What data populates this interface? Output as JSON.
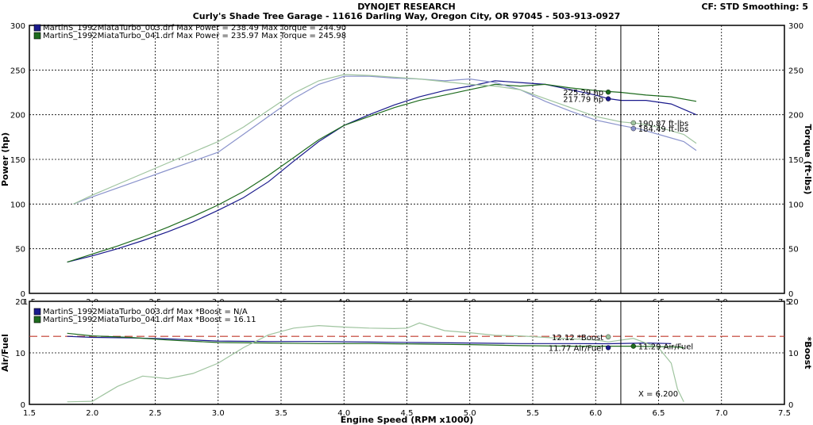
{
  "header": {
    "title": "DYNOJET RESEARCH",
    "subtitle": "Curly's Shade Tree Garage - 11616 Darling Way, Oregon City, OR 97045 - 503-913-0927",
    "correction": "CF: STD  Smoothing: 5"
  },
  "colors": {
    "run_003": "#1a1a8c",
    "run_041": "#1e6b1e",
    "torque_003": "#8a93cc",
    "torque_041": "#9fc49f",
    "afr_ref_line": "#c0392b",
    "grid": "#000000"
  },
  "chart_data": [
    {
      "type": "line",
      "title": "",
      "xlabel": "Engine Speed (RPM x1000)",
      "ylabel": "Power (hp)",
      "y2label": "Torque (ft-lbs)",
      "xlim": [
        1.5,
        7.5
      ],
      "ylim": [
        0,
        300
      ],
      "xticks": [
        "1.5",
        "2.0",
        "2.5",
        "3.0",
        "3.5",
        "4.0",
        "4.5",
        "5.0",
        "5.5",
        "6.0",
        "6.5",
        "7.0",
        "7.5"
      ],
      "yticks": [
        "0",
        "50",
        "100",
        "150",
        "200",
        "250",
        "300"
      ],
      "grid": true,
      "legend": [
        "MartinS_1992MiataTurbo_003.drf Max Power = 238.49     Max Torque = 244.90",
        "MartinS_1992MiataTurbo_041.drf Max Power = 235.97     Max Torque = 245.98"
      ],
      "cursor_x": 6.2,
      "series": [
        {
          "key": "run_003_power",
          "color_key": "run_003",
          "x": [
            1.8,
            2.0,
            2.2,
            2.4,
            2.6,
            2.8,
            3.0,
            3.2,
            3.4,
            3.6,
            3.8,
            4.0,
            4.2,
            4.4,
            4.6,
            4.8,
            5.0,
            5.2,
            5.4,
            5.6,
            5.8,
            6.0,
            6.1,
            6.2,
            6.4,
            6.6,
            6.8
          ],
          "y": [
            35,
            42,
            50,
            59,
            69,
            80,
            93,
            107,
            125,
            148,
            170,
            188,
            200,
            211,
            220,
            227,
            232,
            238,
            236,
            234,
            228,
            222,
            218,
            216,
            216,
            212,
            200
          ]
        },
        {
          "key": "run_041_power",
          "color_key": "run_041",
          "x": [
            1.8,
            2.0,
            2.2,
            2.4,
            2.6,
            2.8,
            3.0,
            3.2,
            3.4,
            3.6,
            3.8,
            4.0,
            4.2,
            4.4,
            4.6,
            4.8,
            5.0,
            5.2,
            5.4,
            5.6,
            5.8,
            6.0,
            6.1,
            6.2,
            6.4,
            6.6,
            6.8
          ],
          "y": [
            35,
            44,
            53,
            63,
            74,
            86,
            99,
            114,
            132,
            152,
            172,
            188,
            198,
            208,
            216,
            222,
            228,
            234,
            232,
            234,
            230,
            227,
            226,
            225,
            222,
            220,
            215
          ]
        },
        {
          "key": "run_003_torque",
          "color_key": "torque_003",
          "x": [
            1.85,
            2.0,
            2.2,
            2.4,
            2.6,
            2.8,
            3.0,
            3.2,
            3.4,
            3.6,
            3.8,
            4.0,
            4.2,
            4.4,
            4.6,
            4.8,
            5.0,
            5.2,
            5.4,
            5.6,
            5.8,
            6.0,
            6.2,
            6.35,
            6.5,
            6.7,
            6.8
          ],
          "y": [
            100,
            108,
            118,
            128,
            138,
            148,
            158,
            178,
            198,
            218,
            234,
            243,
            243,
            241,
            240,
            238,
            240,
            236,
            228,
            215,
            204,
            194,
            188,
            184,
            178,
            170,
            160
          ]
        },
        {
          "key": "run_041_torque",
          "color_key": "torque_041",
          "x": [
            1.85,
            2.0,
            2.2,
            2.4,
            2.6,
            2.8,
            3.0,
            3.2,
            3.4,
            3.6,
            3.8,
            4.0,
            4.2,
            4.4,
            4.6,
            4.8,
            5.0,
            5.2,
            5.4,
            5.6,
            5.8,
            6.0,
            6.2,
            6.35,
            6.5,
            6.7,
            6.8
          ],
          "y": [
            100,
            110,
            122,
            134,
            146,
            158,
            170,
            186,
            205,
            224,
            238,
            245,
            244,
            242,
            240,
            237,
            234,
            232,
            228,
            218,
            208,
            198,
            192,
            190,
            186,
            178,
            168
          ]
        }
      ],
      "annotations": [
        {
          "text": "225.29 hp",
          "x": 6.1,
          "y": 225.29,
          "color_key": "run_041",
          "side": "left"
        },
        {
          "text": "217.79 hp",
          "x": 6.1,
          "y": 217.79,
          "color_key": "run_003",
          "side": "left"
        },
        {
          "text": "190.87 ft-lbs",
          "x": 6.3,
          "y": 190.87,
          "color_key": "torque_041",
          "side": "right"
        },
        {
          "text": "184.49 ft-lbs",
          "x": 6.3,
          "y": 184.49,
          "color_key": "torque_003",
          "side": "right"
        }
      ]
    },
    {
      "type": "line",
      "title": "",
      "xlabel": "Engine Speed (RPM x1000)",
      "ylabel": "Air/Fuel",
      "y2label": "*Boost",
      "xlim": [
        1.5,
        7.5
      ],
      "ylim": [
        0,
        20
      ],
      "xticks": [
        "1.5",
        "2.0",
        "2.5",
        "3.0",
        "3.5",
        "4.0",
        "4.5",
        "5.0",
        "5.5",
        "6.0",
        "6.5",
        "7.0",
        "7.5"
      ],
      "yticks": [
        "0",
        "10",
        "20"
      ],
      "grid": true,
      "legend": [
        "MartinS_1992MiataTurbo_003.drf Max *Boost = N/A",
        "MartinS_1992MiataTurbo_041.drf Max *Boost = 16.11"
      ],
      "reference_line_y": 13.2,
      "cursor_x": 6.2,
      "cursor_readout": "X = 6.200",
      "series": [
        {
          "key": "run_003_afr",
          "color_key": "run_003",
          "x": [
            1.8,
            2.0,
            2.3,
            2.6,
            3.0,
            3.4,
            3.8,
            4.2,
            4.6,
            5.0,
            5.4,
            5.8,
            6.1,
            6.4,
            6.6
          ],
          "y": [
            13.2,
            13.0,
            12.9,
            12.7,
            12.3,
            12.2,
            12.2,
            12.1,
            12.0,
            11.9,
            11.8,
            11.8,
            11.77,
            11.9,
            11.8
          ]
        },
        {
          "key": "run_041_afr",
          "color_key": "run_041",
          "x": [
            1.8,
            2.0,
            2.3,
            2.6,
            3.0,
            3.4,
            3.8,
            4.2,
            4.6,
            5.0,
            5.4,
            5.8,
            6.1,
            6.3,
            6.5,
            6.6,
            6.7
          ],
          "y": [
            13.8,
            13.3,
            13.0,
            12.5,
            12.0,
            11.9,
            11.8,
            11.8,
            11.7,
            11.6,
            11.4,
            11.3,
            11.3,
            11.29,
            11.2,
            11.2,
            11.0
          ]
        },
        {
          "key": "run_041_boost",
          "color_key": "torque_041",
          "x": [
            1.8,
            2.0,
            2.2,
            2.4,
            2.6,
            2.8,
            3.0,
            3.2,
            3.4,
            3.6,
            3.8,
            4.0,
            4.2,
            4.4,
            4.5,
            4.6,
            4.8,
            5.0,
            5.2,
            5.4,
            5.6,
            5.8,
            6.0,
            6.1,
            6.3,
            6.5,
            6.6,
            6.65,
            6.7
          ],
          "y": [
            0.5,
            0.6,
            3.5,
            5.5,
            5.0,
            6.0,
            8.0,
            11.0,
            13.5,
            14.8,
            15.3,
            15.0,
            14.8,
            14.7,
            14.8,
            15.8,
            14.3,
            13.9,
            13.4,
            13.3,
            13.0,
            12.7,
            12.5,
            12.12,
            12.8,
            11.0,
            8.0,
            3.0,
            0.5
          ]
        }
      ],
      "annotations": [
        {
          "text": "12.12 *Boost",
          "x": 6.1,
          "y": 13.1,
          "color_key": "torque_041",
          "side": "left"
        },
        {
          "text": "11.77 Air/Fuel",
          "x": 6.1,
          "y": 11.0,
          "color_key": "run_003",
          "side": "left"
        },
        {
          "text": "11.29 Air/Fuel",
          "x": 6.3,
          "y": 11.29,
          "color_key": "run_041",
          "side": "right"
        }
      ]
    }
  ]
}
